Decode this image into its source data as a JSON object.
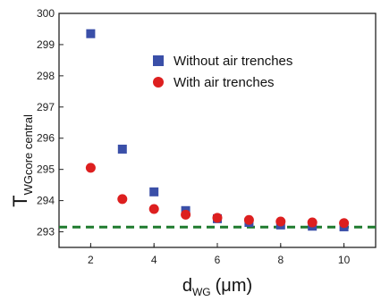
{
  "chart_data": {
    "type": "scatter",
    "title": "",
    "xlabel_main": "d",
    "xlabel_sub": "WG",
    "xlabel_unit": "(μm)",
    "ylabel_main": "T",
    "ylabel_sub": "WGcore central",
    "xlim": [
      1,
      11
    ],
    "ylim": [
      292.5,
      300
    ],
    "x_ticks": [
      2,
      4,
      6,
      8,
      10
    ],
    "y_ticks": [
      293,
      294,
      295,
      296,
      297,
      298,
      299,
      300
    ],
    "grid": false,
    "legend_position": "top-right",
    "series": [
      {
        "name": "Without air trenches",
        "marker": "square",
        "color": "#3a4fa8",
        "x": [
          2,
          3,
          4,
          5,
          6,
          7,
          8,
          9,
          10
        ],
        "y": [
          299.35,
          295.65,
          294.28,
          293.68,
          293.42,
          293.3,
          293.22,
          293.18,
          293.16
        ]
      },
      {
        "name": "With air trenches",
        "marker": "circle",
        "color": "#dd1f1f",
        "x": [
          2,
          3,
          4,
          5,
          6,
          7,
          8,
          9,
          10
        ],
        "y": [
          295.05,
          294.05,
          293.73,
          293.55,
          293.45,
          293.38,
          293.33,
          293.3,
          293.28
        ]
      }
    ],
    "reference_line": {
      "y": 293.15,
      "style": "dashed",
      "color": "#1f7a2e"
    }
  }
}
